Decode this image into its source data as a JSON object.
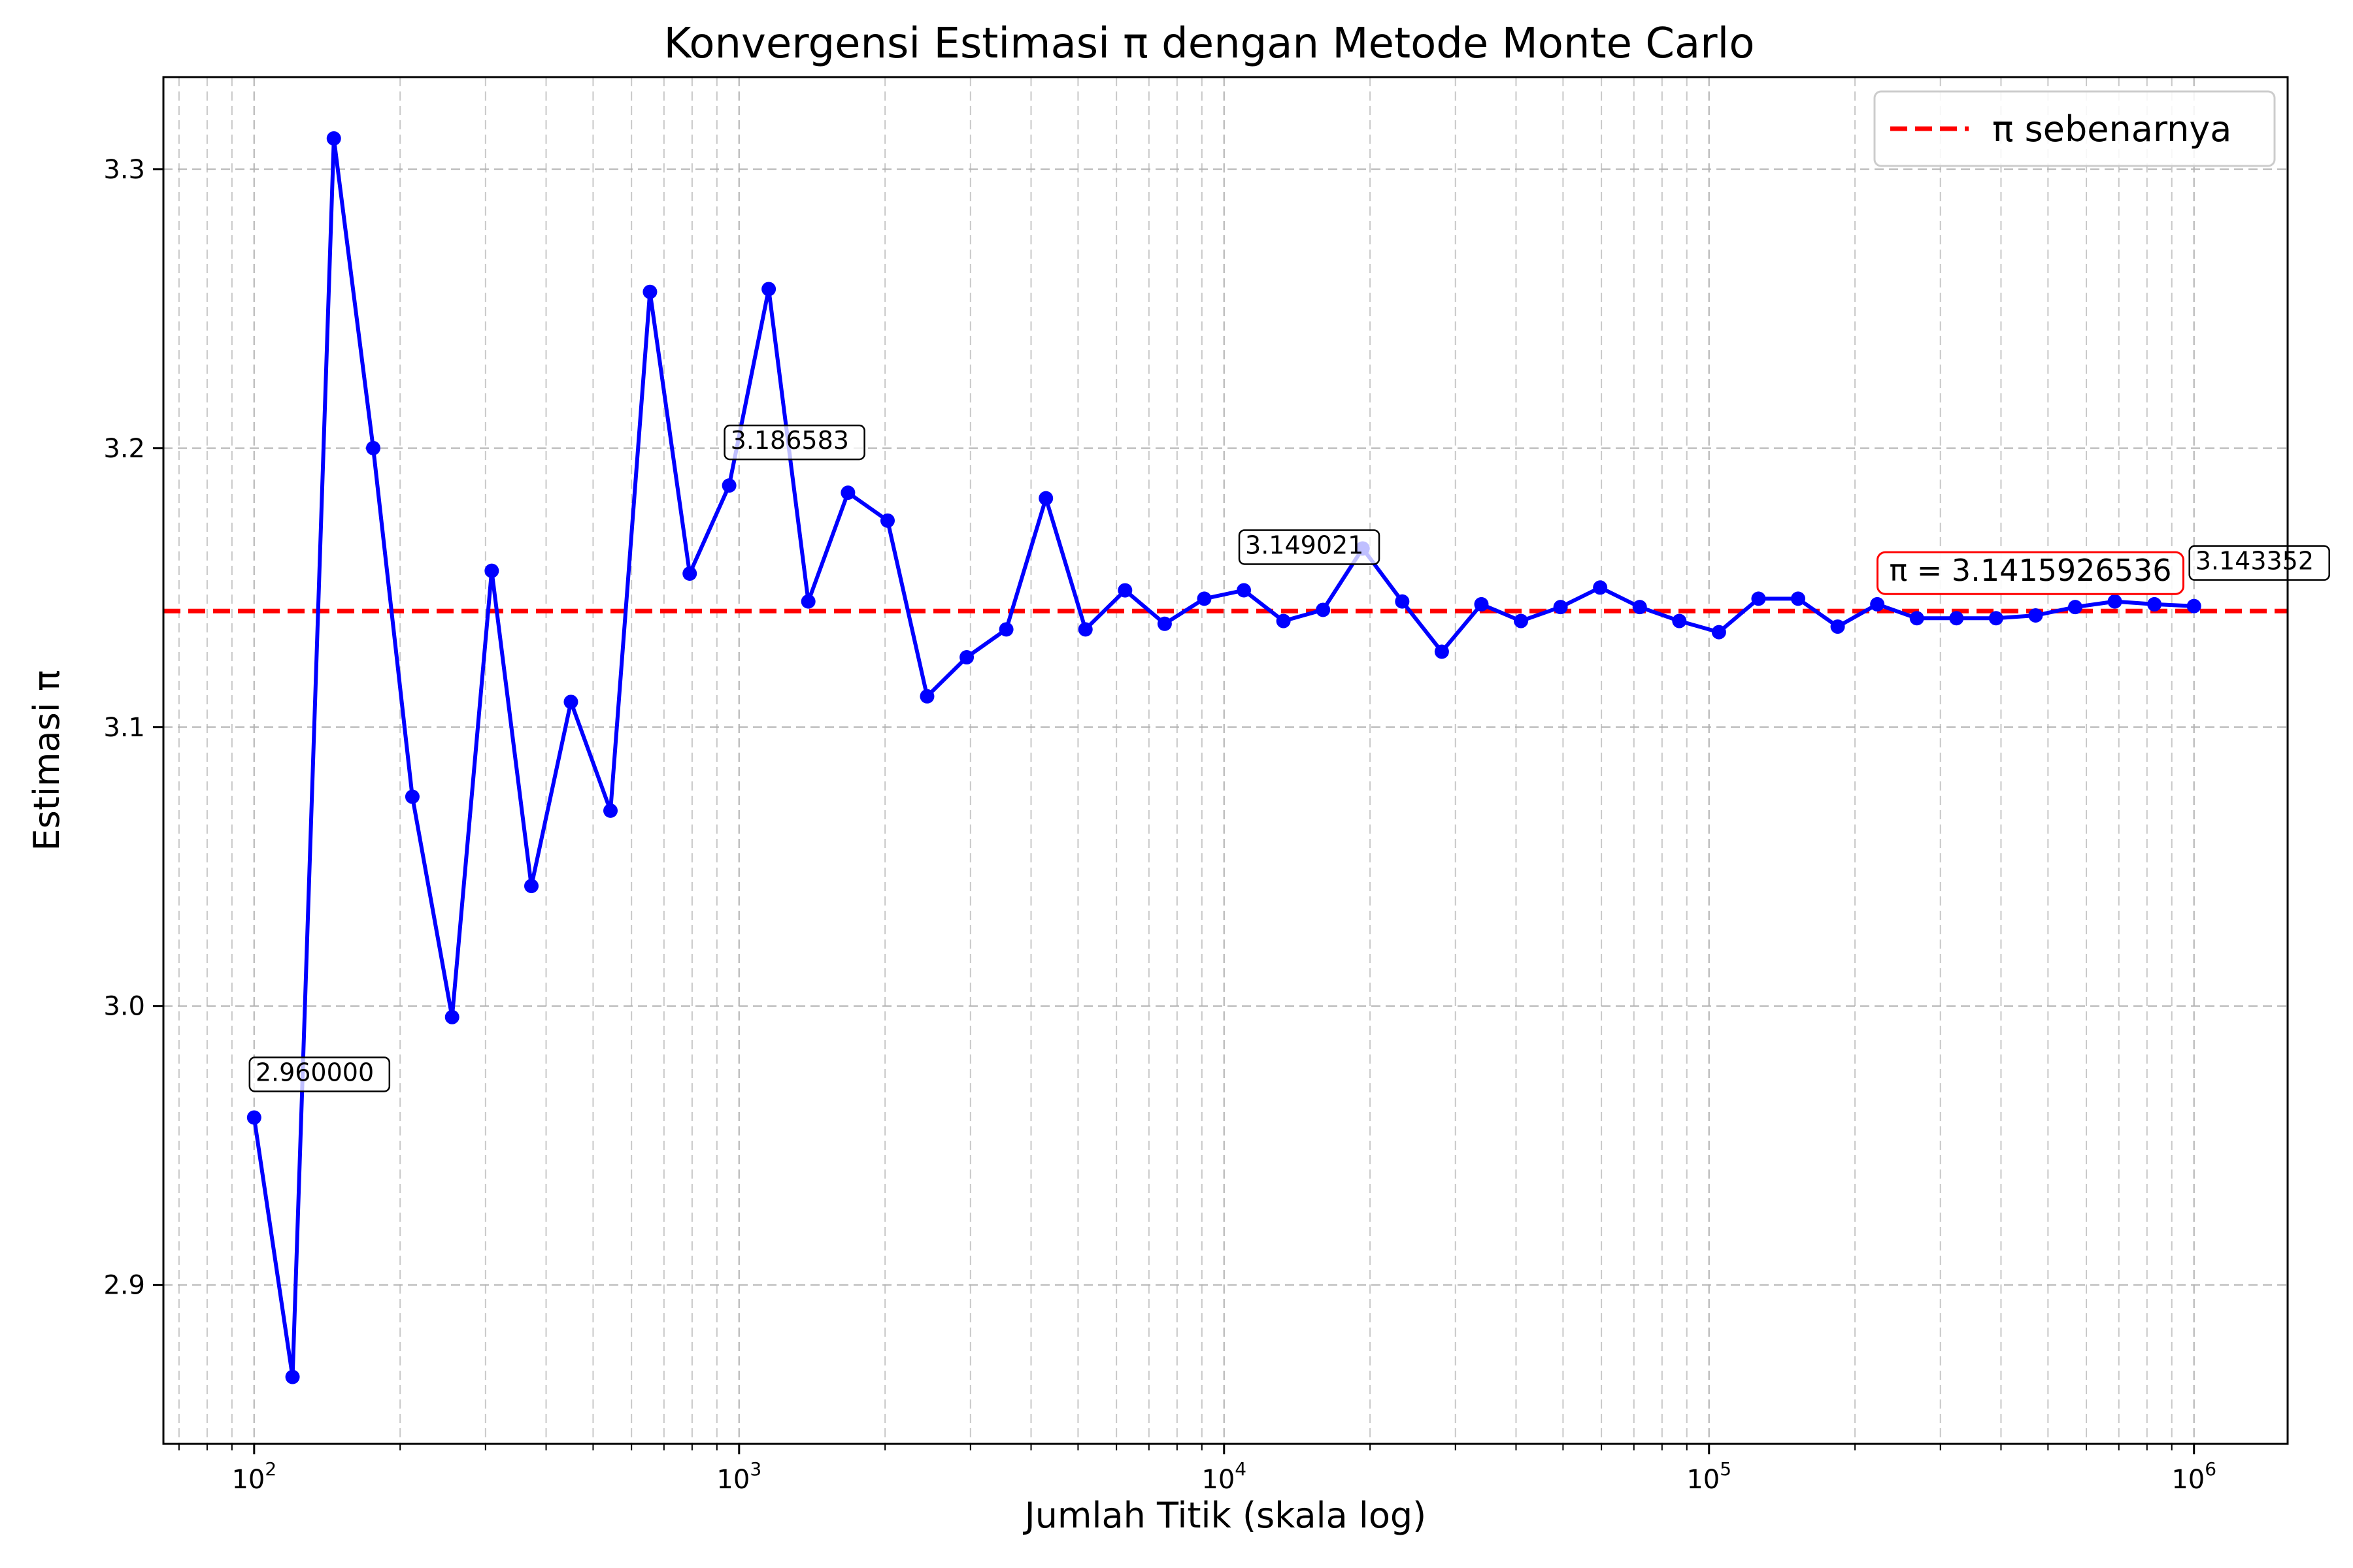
{
  "chart_data": {
    "type": "line",
    "title": "Konvergensi Estimasi π dengan Metode Monte Carlo",
    "xlabel": "Jumlah Titik (skala log)",
    "ylabel": "Estimasi π",
    "xscale": "log",
    "xlim": [
      65,
      1560000
    ],
    "ylim": [
      2.843,
      3.333
    ],
    "grid": true,
    "x_ticks": [
      {
        "value": 100,
        "base": "10",
        "exp": "2"
      },
      {
        "value": 1000,
        "base": "10",
        "exp": "3"
      },
      {
        "value": 10000,
        "base": "10",
        "exp": "4"
      },
      {
        "value": 100000,
        "base": "10",
        "exp": "5"
      },
      {
        "value": 1000000,
        "base": "10",
        "exp": "6"
      }
    ],
    "y_ticks": [
      {
        "value": 2.9,
        "label": "2.9"
      },
      {
        "value": 3.0,
        "label": "3.0"
      },
      {
        "value": 3.1,
        "label": "3.1"
      },
      {
        "value": 3.2,
        "label": "3.2"
      },
      {
        "value": 3.3,
        "label": "3.3"
      }
    ],
    "series": [
      {
        "color": "#0000ff",
        "x": [
          100,
          120,
          146,
          176,
          212,
          256,
          309,
          373,
          450,
          543,
          655,
          791,
          954,
          1151,
          1389,
          1677,
          2024,
          2442,
          2947,
          3556,
          4292,
          5179,
          6250,
          7543,
          9103,
          10985,
          13257,
          15999,
          19307,
          23300,
          28118,
          33932,
          40949,
          49417,
          59636,
          71969,
          86851,
          104811,
          126485,
          152642,
          184207,
          222299,
          268269,
          323745,
          390694,
          471487,
          568987,
          686649,
          828643,
          1000000
        ],
        "y": [
          2.96,
          2.867,
          3.311,
          3.2,
          3.075,
          2.996,
          3.156,
          3.043,
          3.109,
          3.07,
          3.256,
          3.155,
          3.186583,
          3.257,
          3.145,
          3.184,
          3.174,
          3.111,
          3.125,
          3.135,
          3.182,
          3.135,
          3.149,
          3.137,
          3.146,
          3.149021,
          3.138,
          3.142,
          3.164,
          3.145,
          3.127,
          3.144,
          3.138,
          3.143,
          3.15,
          3.143,
          3.138,
          3.134,
          3.146,
          3.146,
          3.136,
          3.144,
          3.139,
          3.139,
          3.139,
          3.14,
          3.143,
          3.145,
          3.144,
          3.143352
        ]
      }
    ],
    "reference_line": {
      "value": 3.1415926536,
      "color": "#ff0000",
      "style": "dashed",
      "legend_label": "π sebenarnya"
    },
    "annotations": [
      {
        "x": 100,
        "y": 2.96,
        "text": "2.960000"
      },
      {
        "x": 954,
        "y": 3.186583,
        "text": "3.186583"
      },
      {
        "x": 10985,
        "y": 3.149021,
        "text": "3.149021"
      },
      {
        "x": 1000000,
        "y": 3.143352,
        "text": "3.143352"
      }
    ],
    "pi_annotation": {
      "text": "π = 3.1415926536",
      "x": 460000,
      "y": 3.1415926536,
      "color": "#ff0000"
    },
    "legend_position": "top-right"
  }
}
